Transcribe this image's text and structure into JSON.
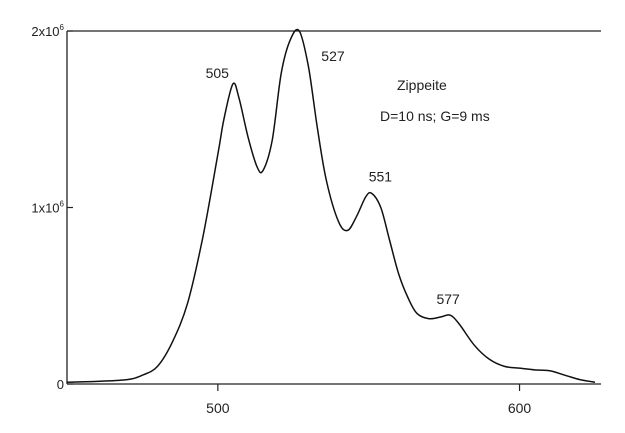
{
  "chart_data": {
    "type": "line",
    "title": "",
    "xlabel": "",
    "ylabel": "",
    "xlim": [
      450,
      627
    ],
    "ylim": [
      0,
      2000000
    ],
    "x_ticks": [
      {
        "value": 500,
        "label": "500"
      },
      {
        "value": 600,
        "label": "600"
      }
    ],
    "y_ticks": [
      {
        "value": 0,
        "base": "0",
        "exp": ""
      },
      {
        "value": 1000000,
        "base": "1x10",
        "exp": "6"
      },
      {
        "value": 2000000,
        "base": "2x10",
        "exp": "6"
      }
    ],
    "annotations": [
      "Zippeite",
      "D=10 ns; G=9 ms"
    ],
    "peak_labels": [
      {
        "x": 505,
        "y": 1700000,
        "text": "505"
      },
      {
        "x": 527,
        "y": 2000000,
        "text": "527"
      },
      {
        "x": 551,
        "y": 1080000,
        "text": "551"
      },
      {
        "x": 577,
        "y": 390000,
        "text": "577"
      }
    ],
    "series": [
      {
        "x": [
          450,
          460,
          470,
          475,
          480,
          485,
          490,
          495,
          500,
          502,
          505,
          507,
          510,
          513,
          515,
          518,
          521,
          524,
          527,
          530,
          533,
          536,
          540,
          543,
          546,
          549,
          551,
          554,
          557,
          560,
          563,
          566,
          570,
          574,
          577,
          580,
          585,
          590,
          595,
          600,
          605,
          610,
          615,
          620,
          625
        ],
        "y": [
          10000,
          15000,
          25000,
          50000,
          100000,
          240000,
          460000,
          830000,
          1300000,
          1500000,
          1700000,
          1620000,
          1400000,
          1230000,
          1210000,
          1380000,
          1760000,
          1950000,
          2000000,
          1800000,
          1450000,
          1150000,
          920000,
          870000,
          950000,
          1060000,
          1080000,
          1000000,
          810000,
          620000,
          490000,
          400000,
          370000,
          380000,
          390000,
          340000,
          220000,
          140000,
          100000,
          90000,
          80000,
          75000,
          50000,
          25000,
          10000
        ]
      }
    ]
  }
}
